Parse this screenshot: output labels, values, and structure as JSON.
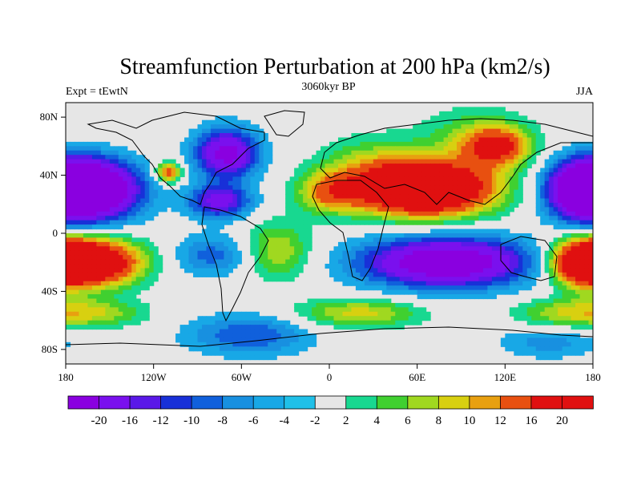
{
  "chart_data": {
    "type": "heatmap",
    "title": "Streamfunction Perturbation at 200 hPa (km2/s)",
    "left_label": "Expt = tEwtN",
    "center_label": "3060kyr BP",
    "right_label": "JJA",
    "xlim": [
      -180,
      180
    ],
    "ylim": [
      -90,
      90
    ],
    "x_ticks": [
      {
        "value": -180,
        "label": "180"
      },
      {
        "value": -120,
        "label": "120W"
      },
      {
        "value": -60,
        "label": "60W"
      },
      {
        "value": 0,
        "label": "0"
      },
      {
        "value": 60,
        "label": "60E"
      },
      {
        "value": 120,
        "label": "120E"
      },
      {
        "value": 180,
        "label": "180"
      }
    ],
    "y_ticks": [
      {
        "value": 80,
        "label": "80N"
      },
      {
        "value": 40,
        "label": "40N"
      },
      {
        "value": 0,
        "label": "0"
      },
      {
        "value": -40,
        "label": "40S"
      },
      {
        "value": -80,
        "label": "80S"
      }
    ],
    "levels": [
      -20,
      -16,
      -12,
      -10,
      -8,
      -6,
      -4,
      -2,
      2,
      4,
      6,
      8,
      10,
      12,
      16,
      20
    ],
    "level_labels": [
      "-20",
      "-16",
      "-12",
      "-10",
      "-8",
      "-6",
      "-4",
      "-2",
      "2",
      "4",
      "6",
      "8",
      "10",
      "12",
      "16",
      "20"
    ],
    "colors": [
      "#8a00e0",
      "#7a10ee",
      "#5a18e8",
      "#1830d8",
      "#1060dc",
      "#1890e0",
      "#18a8e6",
      "#20c0e8",
      "#e6e6e6",
      "#18d890",
      "#40d030",
      "#a0d820",
      "#d8d010",
      "#e8a010",
      "#e85010",
      "#e01010"
    ],
    "field_centers": [
      {
        "lon": 60,
        "lat": 30,
        "value": 24,
        "slon": 30,
        "slat": 12
      },
      {
        "lon": 80,
        "lat": 32,
        "value": 10,
        "slon": 30,
        "slat": 14
      },
      {
        "lon": 0,
        "lat": 28,
        "value": 11,
        "slon": 15,
        "slat": 10
      },
      {
        "lon": 30,
        "lat": 45,
        "value": 7,
        "slon": 25,
        "slat": 15
      },
      {
        "lon": 115,
        "lat": 60,
        "value": 15,
        "slon": 15,
        "slat": 9
      },
      {
        "lon": 100,
        "lat": 65,
        "value": 6,
        "slon": 25,
        "slat": 15
      },
      {
        "lon": -110,
        "lat": 42,
        "value": 15,
        "slon": 6,
        "slat": 5
      },
      {
        "lon": -160,
        "lat": -20,
        "value": 25,
        "slon": 22,
        "slat": 11
      },
      {
        "lon": 175,
        "lat": -20,
        "value": 25,
        "slon": 16,
        "slat": 11
      },
      {
        "lon": -35,
        "lat": -12,
        "value": 8,
        "slon": 16,
        "slat": 14
      },
      {
        "lon": 20,
        "lat": -55,
        "value": 9,
        "slon": 30,
        "slat": 7
      },
      {
        "lon": -160,
        "lat": -55,
        "value": 7,
        "slon": 25,
        "slat": 7
      },
      {
        "lon": 160,
        "lat": -55,
        "value": 7,
        "slon": 25,
        "slat": 7
      },
      {
        "lon": -160,
        "lat": 30,
        "value": -25,
        "slon": 22,
        "slat": 14
      },
      {
        "lon": 175,
        "lat": 30,
        "value": -25,
        "slon": 18,
        "slat": 14
      },
      {
        "lon": -70,
        "lat": 55,
        "value": -18,
        "slon": 15,
        "slat": 12
      },
      {
        "lon": -75,
        "lat": 22,
        "value": -14,
        "slon": 15,
        "slat": 8
      },
      {
        "lon": 80,
        "lat": -20,
        "value": -22,
        "slon": 40,
        "slat": 12
      },
      {
        "lon": -80,
        "lat": -15,
        "value": -7,
        "slon": 18,
        "slat": 10
      },
      {
        "lon": -55,
        "lat": -70,
        "value": -8,
        "slon": 30,
        "slat": 10
      },
      {
        "lon": 150,
        "lat": -75,
        "value": -5,
        "slon": 25,
        "slat": 8
      }
    ]
  }
}
